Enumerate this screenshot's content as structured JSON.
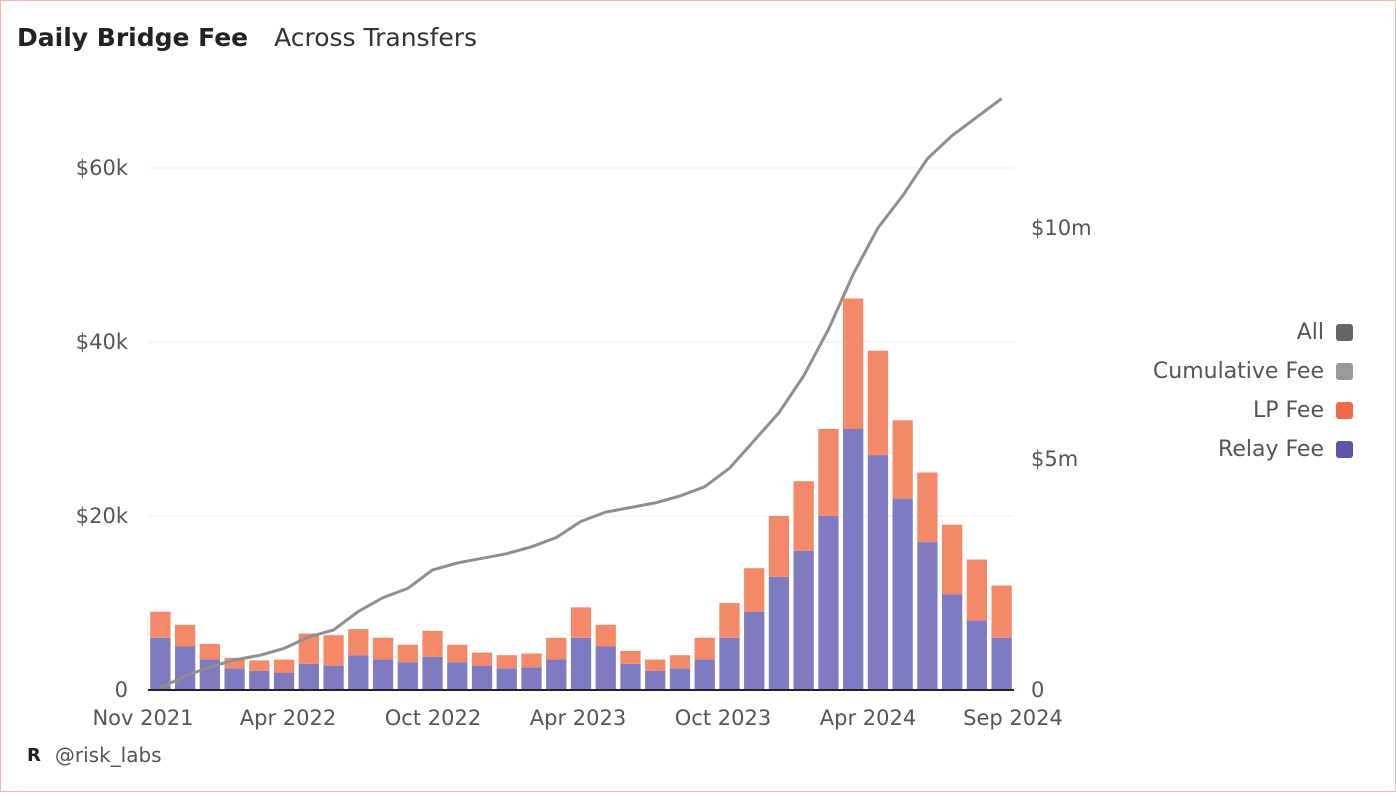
{
  "header": {
    "title": "Daily Bridge Fee",
    "subtitle": "Across Transfers"
  },
  "footer": {
    "logo": "R",
    "handle": "@risk_labs"
  },
  "legend": [
    {
      "label": "All",
      "color": "#666666"
    },
    {
      "label": "Cumulative Fee",
      "color": "#999999"
    },
    {
      "label": "LP Fee",
      "color": "#f26a47"
    },
    {
      "label": "Relay Fee",
      "color": "#5b56a6"
    }
  ],
  "chart_data": {
    "type": "bar",
    "title": "Daily Bridge Fee",
    "subtitle": "Across Transfers",
    "stacked": true,
    "x_ticks": [
      "Nov 2021",
      "Apr 2022",
      "Oct 2022",
      "Apr 2023",
      "Oct 2023",
      "Apr 2024",
      "Sep 2024"
    ],
    "y_left": {
      "ticks": [
        "0",
        "$20k",
        "$40k",
        "$60k"
      ],
      "range": [
        0,
        60000
      ]
    },
    "y_right": {
      "ticks": [
        "0",
        "$5m",
        "$10m"
      ],
      "range": [
        0,
        10000000
      ]
    },
    "grid": true,
    "legend_position": "right",
    "categories": [
      "Nov 2021",
      "Dec 2021",
      "Jan 2022",
      "Feb 2022",
      "Mar 2022",
      "Apr 2022",
      "May 2022",
      "Jun 2022",
      "Jul 2022",
      "Aug 2022",
      "Sep 2022",
      "Oct 2022",
      "Nov 2022",
      "Dec 2022",
      "Jan 2023",
      "Feb 2023",
      "Mar 2023",
      "Apr 2023",
      "May 2023",
      "Jun 2023",
      "Jul 2023",
      "Aug 2023",
      "Sep 2023",
      "Oct 2023",
      "Nov 2023",
      "Dec 2023",
      "Jan 2024",
      "Feb 2024",
      "Mar 2024",
      "Apr 2024",
      "May 2024",
      "Jun 2024",
      "Jul 2024",
      "Aug 2024",
      "Sep 2024"
    ],
    "series": [
      {
        "name": "Relay Fee",
        "type": "bar",
        "axis": "left",
        "values": [
          6000,
          5000,
          3500,
          2500,
          2200,
          2000,
          3000,
          2800,
          4000,
          3500,
          3200,
          3800,
          3200,
          2800,
          2500,
          2600,
          3500,
          6000,
          5000,
          3000,
          2200,
          2500,
          3500,
          6000,
          9000,
          13000,
          16000,
          20000,
          30000,
          27000,
          22000,
          17000,
          11000,
          8000,
          6000
        ]
      },
      {
        "name": "LP Fee",
        "type": "bar",
        "axis": "left",
        "values": [
          3000,
          2500,
          1800,
          1200,
          1200,
          1500,
          3500,
          3500,
          3000,
          2500,
          2000,
          3000,
          2000,
          1500,
          1500,
          1600,
          2500,
          3500,
          2500,
          1500,
          1300,
          1500,
          2500,
          4000,
          5000,
          7000,
          8000,
          10000,
          15000,
          12000,
          9000,
          8000,
          8000,
          7000,
          6000
        ]
      },
      {
        "name": "Cumulative Fee",
        "type": "line",
        "axis": "right",
        "values": [
          50000,
          300000,
          500000,
          650000,
          750000,
          900000,
          1150000,
          1300000,
          1700000,
          2000000,
          2200000,
          2600000,
          2750000,
          2850000,
          2950000,
          3100000,
          3300000,
          3650000,
          3850000,
          3950000,
          4050000,
          4200000,
          4400000,
          4800000,
          5400000,
          6000000,
          6800000,
          7800000,
          9000000,
          10000000,
          10700000,
          11500000,
          12000000,
          12400000,
          12800000
        ]
      }
    ]
  }
}
